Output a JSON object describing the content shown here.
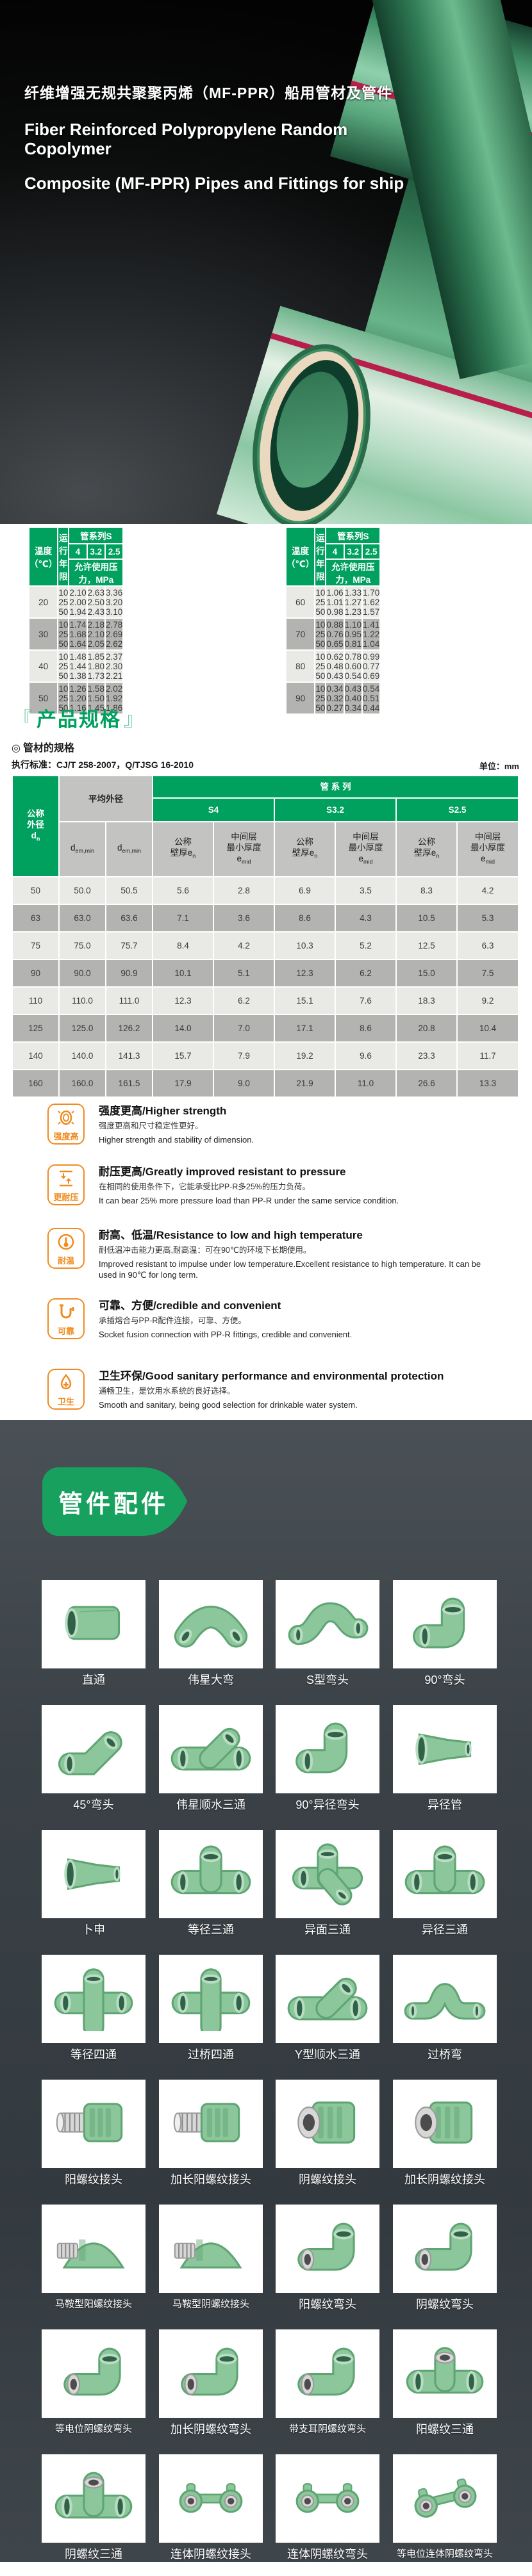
{
  "hero": {
    "title_zh": "纤维增强无规共聚聚丙烯（MF-PPR）船用管材及管件",
    "title_en_line1": "Fiber Reinforced Polypropylene Random Copolymer",
    "title_en_line2": "Composite (MF-PPR) Pipes and Fittings for ship"
  },
  "pressure_section": {
    "col_temp": "温度（℃）",
    "col_years": "运行年限",
    "col_series": "管系列S",
    "s_values": [
      "4",
      "3.2",
      "2.5"
    ],
    "pressure_label": "允许使用压力，MPa",
    "left_groups": [
      {
        "temp": "20",
        "years": [
          "10",
          "25",
          "50"
        ],
        "s4": [
          "2.10",
          "2.00",
          "1.94"
        ],
        "s32": [
          "2.63",
          "2.50",
          "2.43"
        ],
        "s25": [
          "3.36",
          "3.20",
          "3.10"
        ]
      },
      {
        "temp": "30",
        "years": [
          "10",
          "25",
          "50"
        ],
        "s4": [
          "1.74",
          "1.68",
          "1.64"
        ],
        "s32": [
          "2.18",
          "2.10",
          "2.05"
        ],
        "s25": [
          "2.78",
          "2.69",
          "2.62"
        ]
      },
      {
        "temp": "40",
        "years": [
          "10",
          "25",
          "50"
        ],
        "s4": [
          "1.48",
          "1.44",
          "1.38"
        ],
        "s32": [
          "1.85",
          "1.80",
          "1.73"
        ],
        "s25": [
          "2.37",
          "2.30",
          "2.21"
        ]
      },
      {
        "temp": "50",
        "years": [
          "10",
          "25",
          "50"
        ],
        "s4": [
          "1.26",
          "1.20",
          "1.16"
        ],
        "s32": [
          "1.58",
          "1.50",
          "1.45"
        ],
        "s25": [
          "2.02",
          "1.92",
          "1.86"
        ]
      }
    ],
    "right_groups": [
      {
        "temp": "60",
        "years": [
          "10",
          "25",
          "50"
        ],
        "s4": [
          "1.06",
          "1.01",
          "0.98"
        ],
        "s32": [
          "1.33",
          "1.27",
          "1.23"
        ],
        "s25": [
          "1.70",
          "1.62",
          "1.57"
        ]
      },
      {
        "temp": "70",
        "years": [
          "10",
          "25",
          "50"
        ],
        "s4": [
          "0.88",
          "0.76",
          "0.65"
        ],
        "s32": [
          "1.10",
          "0.95",
          "0.81"
        ],
        "s25": [
          "1.41",
          "1.22",
          "1.04"
        ]
      },
      {
        "temp": "80",
        "years": [
          "10",
          "25",
          "50"
        ],
        "s4": [
          "0.62",
          "0.48",
          "0.43"
        ],
        "s32": [
          "0.78",
          "0.60",
          "0.54"
        ],
        "s25": [
          "0.99",
          "0.77",
          "0.69"
        ]
      },
      {
        "temp": "90",
        "years": [
          "10",
          "25",
          "50"
        ],
        "s4": [
          "0.34",
          "0.32",
          "0.27"
        ],
        "s32": [
          "0.43",
          "0.40",
          "0.34"
        ],
        "s25": [
          "0.54",
          "0.51",
          "0.44"
        ]
      }
    ]
  },
  "spec_section": {
    "bracket_left": "『",
    "heading": "产品规格",
    "bracket_right": "』",
    "subheading_mark": "◎",
    "subheading": "管材的规格",
    "standard": "执行标准：CJ/T 258-2007，Q/TJSG 16-2010",
    "unit": "单位：mm",
    "table": {
      "dn_l1": "公称",
      "dn_l2": "外径",
      "dn_base": "d",
      "dn_sub": "n",
      "avg_label": "平均外径",
      "dem_base": "d",
      "dem_sub": "em,min",
      "series_label": "管 系 列",
      "s_labels": [
        "S4",
        "S3.2",
        "S2.5"
      ],
      "wall_l1": "公称",
      "wall_l2": "壁厚",
      "wall_base": "e",
      "wall_sub": "n",
      "mid_l1": "中间层",
      "mid_l2": "最小厚度",
      "mid_base": "e",
      "mid_sub": "mid",
      "rows": [
        [
          "50",
          "50.0",
          "50.5",
          "5.6",
          "2.8",
          "6.9",
          "3.5",
          "8.3",
          "4.2"
        ],
        [
          "63",
          "63.0",
          "63.6",
          "7.1",
          "3.6",
          "8.6",
          "4.3",
          "10.5",
          "5.3"
        ],
        [
          "75",
          "75.0",
          "75.7",
          "8.4",
          "4.2",
          "10.3",
          "5.2",
          "12.5",
          "6.3"
        ],
        [
          "90",
          "90.0",
          "90.9",
          "10.1",
          "5.1",
          "12.3",
          "6.2",
          "15.0",
          "7.5"
        ],
        [
          "110",
          "110.0",
          "111.0",
          "12.3",
          "6.2",
          "15.1",
          "7.6",
          "18.3",
          "9.2"
        ],
        [
          "125",
          "125.0",
          "126.2",
          "14.0",
          "7.0",
          "17.1",
          "8.6",
          "20.8",
          "10.4"
        ],
        [
          "140",
          "140.0",
          "141.3",
          "15.7",
          "7.9",
          "19.2",
          "9.6",
          "23.3",
          "11.7"
        ],
        [
          "160",
          "160.0",
          "161.5",
          "17.9",
          "9.0",
          "21.9",
          "11.0",
          "26.6",
          "13.3"
        ]
      ]
    }
  },
  "features": {
    "accent_color": "#ef8b1f",
    "items": [
      {
        "badge": "强度高",
        "icon": "pipe-section-icon",
        "title": "强度更高/Higher strength",
        "desc_zh": "强度更高和尺寸稳定性更好。",
        "desc_en": "Higher strength and stability of dimension."
      },
      {
        "badge": "更耐压",
        "icon": "pressure-arrows-icon",
        "title": "耐压更高/Greatly improved resistant to pressure",
        "desc_zh": "在相同的使用条件下，它能承受比PP-R多25%的压力负荷。",
        "desc_en": "It can bear 25% more pressure load than PP-R under the same service condition."
      },
      {
        "badge": "耐温",
        "icon": "thermometer-icon",
        "title": "耐高、低温/Resistance to low and high temperature",
        "desc_zh": "耐低温冲击能力更高,耐高温：可在90℃的环境下长期使用。",
        "desc_en": "Improved resistant to impulse under low temperature.Excellent resistance to high temperature. It can be used in 90℃ for long term."
      },
      {
        "badge": "可靠",
        "icon": "pipe-connection-icon",
        "title": "可靠、方便/credible and convenient",
        "desc_zh": "承插熔合与PP-R配件连接，可靠、方便。",
        "desc_en": "Socket fusion connection with PP-R fittings, credible and convenient."
      },
      {
        "badge": "卫生",
        "icon": "water-drop-icon",
        "title": "卫生环保/Good sanitary performance and environmental protection",
        "desc_zh": "通畅卫生，是饮用水系统的良好选择。",
        "desc_en": "Smooth and sanitary, being good selection for drinkable water system."
      }
    ]
  },
  "fittings": {
    "badge": "管件配件",
    "badge_color": "#18a05f",
    "items": [
      {
        "label": "直通",
        "shape": "coupling"
      },
      {
        "label": "伟星大弯",
        "shape": "bend"
      },
      {
        "label": "S型弯头",
        "shape": "sbend"
      },
      {
        "label": "90°弯头",
        "shape": "elbow"
      },
      {
        "label": "45°弯头",
        "shape": "elbow45"
      },
      {
        "label": "伟星顺水三通",
        "shape": "ytee"
      },
      {
        "label": "90°异径弯头",
        "shape": "elbow"
      },
      {
        "label": "异径管",
        "shape": "reducer"
      },
      {
        "label": "卜申",
        "shape": "reducer"
      },
      {
        "label": "等径三通",
        "shape": "tee"
      },
      {
        "label": "异面三通",
        "shape": "cornertee"
      },
      {
        "label": "异径三通",
        "shape": "tee"
      },
      {
        "label": "等径四通",
        "shape": "cross"
      },
      {
        "label": "过桥四通",
        "shape": "cross"
      },
      {
        "label": "Y型顺水三通",
        "shape": "ytee"
      },
      {
        "label": "过桥弯",
        "shape": "bridge"
      },
      {
        "label": "阳螺纹接头",
        "shape": "maleunion"
      },
      {
        "label": "加长阳螺纹接头",
        "shape": "maleunion"
      },
      {
        "label": "阴螺纹接头",
        "shape": "femaleunion"
      },
      {
        "label": "加长阴螺纹接头",
        "shape": "femaleunion"
      },
      {
        "label": "马鞍型阳螺纹接头",
        "shape": "saddle"
      },
      {
        "label": "马鞍型阴螺纹接头",
        "shape": "saddle"
      },
      {
        "label": "阳螺纹弯头",
        "shape": "threadelbow"
      },
      {
        "label": "阴螺纹弯头",
        "shape": "threadelbow"
      },
      {
        "label": "等电位阴螺纹弯头",
        "shape": "threadelbow"
      },
      {
        "label": "加长阴螺纹弯头",
        "shape": "threadelbow"
      },
      {
        "label": "带支耳阴螺纹弯头",
        "shape": "threadelbow"
      },
      {
        "label": "阳螺纹三通",
        "shape": "threadtee"
      },
      {
        "label": "阴螺纹三通",
        "shape": "threadtee"
      },
      {
        "label": "连体阴螺纹接头",
        "shape": "wallbar"
      },
      {
        "label": "连体阴螺纹弯头",
        "shape": "wallbar"
      },
      {
        "label": "等电位连体阴螺纹弯头",
        "shape": "eqwallbar"
      }
    ]
  }
}
